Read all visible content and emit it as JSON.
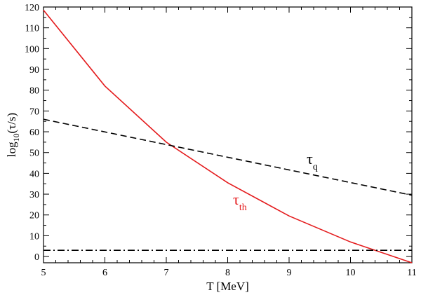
{
  "chart_data": {
    "type": "line",
    "xlabel": "T [MeV]",
    "ylabel": {
      "prefix": "log",
      "sub": "10",
      "suffix": "(τ/s)"
    },
    "xlim": [
      5,
      11
    ],
    "ylim": [
      -3,
      120
    ],
    "xticks": [
      5,
      6,
      7,
      8,
      9,
      10,
      11
    ],
    "yticks": [
      0,
      10,
      20,
      30,
      40,
      50,
      60,
      70,
      80,
      90,
      100,
      110,
      120
    ],
    "grid": false,
    "series": [
      {
        "label": {
          "main": "τ",
          "sub": "th"
        },
        "color": "#e41a1c",
        "style": "solid",
        "x": [
          5,
          6,
          7,
          8,
          9,
          10,
          11
        ],
        "y": [
          118.5,
          82,
          55,
          35.5,
          19.5,
          7,
          -3
        ]
      },
      {
        "label": {
          "main": "τ",
          "sub": "q"
        },
        "color": "#000000",
        "style": "dashed",
        "x": [
          5,
          11
        ],
        "y": [
          66,
          29.5
        ]
      },
      {
        "color": "#000000",
        "style": "dash-dot",
        "x": [
          5,
          11
        ],
        "y": [
          3,
          3
        ]
      }
    ]
  }
}
